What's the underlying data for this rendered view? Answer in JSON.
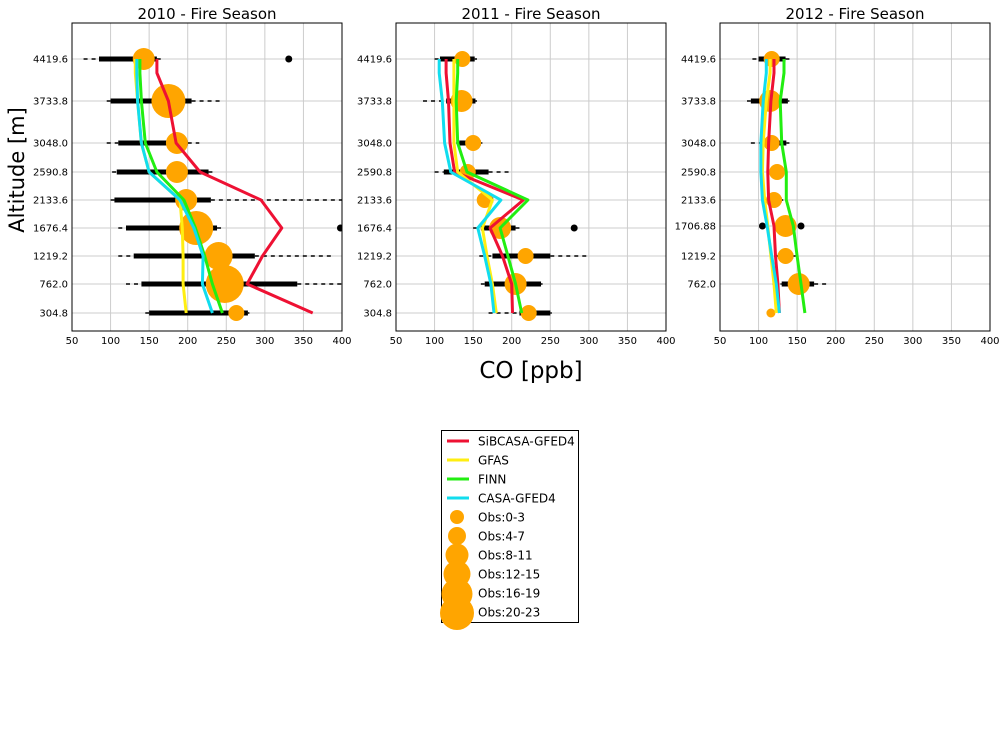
{
  "figure": {
    "ylabel": "Altitude [m]",
    "xlabel": "CO [ppb]",
    "colors": {
      "SiBCASA-GFED4": "#ee1133",
      "GFAS": "#ffee11",
      "FINN": "#22ee11",
      "CASA-GFED4": "#11ddee",
      "obs": "#ffa500",
      "boxplot": "#000000",
      "grid": "#cccccc"
    }
  },
  "legend": {
    "placement": "below-center",
    "entries": [
      {
        "label": "SiBCASA-GFED4",
        "type": "line",
        "color": "#ee1133"
      },
      {
        "label": "GFAS",
        "type": "line",
        "color": "#ffee11"
      },
      {
        "label": "FINN",
        "type": "line",
        "color": "#22ee11"
      },
      {
        "label": "CASA-GFED4",
        "type": "line",
        "color": "#11ddee"
      },
      {
        "label": "Obs:0-3",
        "type": "marker",
        "color": "#ffa500",
        "size": 1
      },
      {
        "label": "Obs:4-7",
        "type": "marker",
        "color": "#ffa500",
        "size": 2
      },
      {
        "label": "Obs:8-11",
        "type": "marker",
        "color": "#ffa500",
        "size": 3
      },
      {
        "label": "Obs:12-15",
        "type": "marker",
        "color": "#ffa500",
        "size": 4
      },
      {
        "label": "Obs:16-19",
        "type": "marker",
        "color": "#ffa500",
        "size": 5
      },
      {
        "label": "Obs:20-23",
        "type": "marker",
        "color": "#ffa500",
        "size": 6
      }
    ]
  },
  "chart_data": [
    {
      "type": "line",
      "title": "2010 - Fire Season",
      "xlim": [
        50,
        400
      ],
      "xticks": [
        50,
        100,
        150,
        200,
        250,
        300,
        350,
        400
      ],
      "yticks": [
        "4419.6",
        "3733.8",
        "3048.0",
        "2590.8",
        "2133.6",
        "1676.4",
        "1219.2",
        "762.0",
        "304.8"
      ],
      "grid": true,
      "series": [
        {
          "name": "SiBCASA-GFED4",
          "x": [
            362,
            277,
            297,
            322,
            295,
            216,
            185,
            175,
            160,
            160
          ],
          "y": [
            304.8,
            762.0,
            1219.2,
            1676.4,
            2133.6,
            2590.8,
            3048.0,
            3733.8,
            4200,
            4419.6
          ]
        },
        {
          "name": "GFAS",
          "x": [
            198,
            194,
            194,
            193,
            190,
            150,
            140,
            135,
            132,
            132
          ],
          "y": [
            304.8,
            762.0,
            1219.2,
            1676.4,
            2133.6,
            2590.8,
            3048.0,
            3733.8,
            4200,
            4419.6
          ]
        },
        {
          "name": "FINN",
          "x": [
            245,
            232,
            222,
            210,
            195,
            160,
            145,
            140,
            138,
            138
          ],
          "y": [
            304.8,
            762.0,
            1219.2,
            1676.4,
            2133.6,
            2590.8,
            3048.0,
            3733.8,
            4200,
            4419.6
          ]
        },
        {
          "name": "CASA-GFED4",
          "x": [
            232,
            219,
            220,
            208,
            190,
            150,
            140,
            135,
            134,
            134
          ],
          "y": [
            304.8,
            762.0,
            1219.2,
            1676.4,
            2133.6,
            2590.8,
            3048.0,
            3733.8,
            4200,
            4419.6
          ]
        }
      ],
      "obs": [
        {
          "alt": 4419.6,
          "co": 143,
          "size": 2
        },
        {
          "alt": 3733.8,
          "co": 175,
          "size": 4
        },
        {
          "alt": 3048.0,
          "co": 186,
          "size": 2
        },
        {
          "alt": 2590.8,
          "co": 186,
          "size": 2
        },
        {
          "alt": 2133.6,
          "co": 198,
          "size": 2
        },
        {
          "alt": 1676.4,
          "co": 211,
          "size": 4
        },
        {
          "alt": 1219.2,
          "co": 240,
          "size": 3
        },
        {
          "alt": 762.0,
          "co": 248,
          "size": 5
        },
        {
          "alt": 304.8,
          "co": 263,
          "size": 1
        }
      ],
      "boxplots": [
        {
          "alt": 4419.6,
          "min": 65,
          "q1": 85,
          "q3": 160,
          "max": 165,
          "outliers": [
            331
          ]
        },
        {
          "alt": 3733.8,
          "min": 95,
          "q1": 100,
          "q3": 205,
          "max": 245,
          "outliers": []
        },
        {
          "alt": 3048.0,
          "min": 95,
          "q1": 110,
          "q3": 200,
          "max": 215,
          "outliers": []
        },
        {
          "alt": 2590.8,
          "min": 102,
          "q1": 108,
          "q3": 227,
          "max": 232,
          "outliers": []
        },
        {
          "alt": 2133.6,
          "min": 100,
          "q1": 105,
          "q3": 230,
          "max": 400,
          "outliers": []
        },
        {
          "alt": 1676.4,
          "min": 110,
          "q1": 120,
          "q3": 238,
          "max": 245,
          "outliers": [
            398
          ]
        },
        {
          "alt": 1219.2,
          "min": 110,
          "q1": 130,
          "q3": 287,
          "max": 390,
          "outliers": []
        },
        {
          "alt": 762.0,
          "min": 120,
          "q1": 140,
          "q3": 342,
          "max": 400,
          "outliers": []
        },
        {
          "alt": 304.8,
          "min": 145,
          "q1": 150,
          "q3": 278,
          "max": 280,
          "outliers": []
        }
      ]
    },
    {
      "type": "line",
      "title": "2011 - Fire Season",
      "xlim": [
        50,
        400
      ],
      "xticks": [
        50,
        100,
        150,
        200,
        250,
        300,
        350,
        400
      ],
      "yticks": [
        "4419.6",
        "3733.8",
        "3048.0",
        "2590.8",
        "2133.6",
        "1676.4",
        "1219.2",
        "762.0",
        "304.8"
      ],
      "grid": true,
      "series": [
        {
          "name": "SiBCASA-GFED4",
          "x": [
            201,
            200,
            188,
            172,
            215,
            126,
            120,
            118,
            115,
            115
          ],
          "y": [
            304.8,
            762.0,
            1219.2,
            1676.4,
            2133.6,
            2590.8,
            3048.0,
            3733.8,
            4200,
            4419.6
          ]
        },
        {
          "name": "GFAS",
          "x": [
            180,
            175,
            168,
            162,
            175,
            130,
            125,
            125,
            125,
            125
          ],
          "y": [
            304.8,
            762.0,
            1219.2,
            1676.4,
            2133.6,
            2590.8,
            3048.0,
            3733.8,
            4200,
            4419.6
          ]
        },
        {
          "name": "FINN",
          "x": [
            213,
            205,
            195,
            185,
            221,
            142,
            130,
            128,
            130,
            130
          ],
          "y": [
            304.8,
            762.0,
            1219.2,
            1676.4,
            2133.6,
            2590.8,
            3048.0,
            3733.8,
            4200,
            4419.6
          ]
        },
        {
          "name": "CASA-GFED4",
          "x": [
            177,
            173,
            165,
            156,
            186,
            121,
            113,
            110,
            106,
            106
          ],
          "y": [
            304.8,
            762.0,
            1219.2,
            1676.4,
            2133.6,
            2590.8,
            3048.0,
            3733.8,
            4200,
            4419.6
          ]
        }
      ],
      "obs": [
        {
          "alt": 4419.6,
          "co": 136,
          "size": 1
        },
        {
          "alt": 3733.8,
          "co": 135,
          "size": 2
        },
        {
          "alt": 3048.0,
          "co": 150,
          "size": 1
        },
        {
          "alt": 2590.8,
          "co": 143,
          "size": 1
        },
        {
          "alt": 2133.6,
          "co": 165,
          "size": 1
        },
        {
          "alt": 1676.4,
          "co": 185,
          "size": 2
        },
        {
          "alt": 1219.2,
          "co": 218,
          "size": 1
        },
        {
          "alt": 762.0,
          "co": 205,
          "size": 2
        },
        {
          "alt": 304.8,
          "co": 222,
          "size": 1
        }
      ],
      "boxplots": [
        {
          "alt": 4419.6,
          "min": 100,
          "q1": 107,
          "q3": 152,
          "max": 155,
          "outliers": []
        },
        {
          "alt": 3733.8,
          "min": 85,
          "q1": 115,
          "q3": 153,
          "max": 155,
          "outliers": []
        },
        {
          "alt": 3048.0,
          "min": 128,
          "q1": 132,
          "q3": 160,
          "max": 162,
          "outliers": []
        },
        {
          "alt": 2590.8,
          "min": 100,
          "q1": 112,
          "q3": 170,
          "max": 198,
          "outliers": []
        },
        {
          "alt": 2133.6,
          "min": 172,
          "q1": 172,
          "q3": 176,
          "max": 176,
          "outliers": []
        },
        {
          "alt": 1676.4,
          "min": 150,
          "q1": 160,
          "q3": 205,
          "max": 210,
          "outliers": [
            281
          ]
        },
        {
          "alt": 1219.2,
          "min": 158,
          "q1": 175,
          "q3": 250,
          "max": 298,
          "outliers": []
        },
        {
          "alt": 762.0,
          "min": 160,
          "q1": 165,
          "q3": 238,
          "max": 240,
          "outliers": []
        },
        {
          "alt": 304.8,
          "min": 170,
          "q1": 210,
          "q3": 250,
          "max": 252,
          "outliers": []
        }
      ]
    },
    {
      "type": "line",
      "title": "2012 - Fire Season",
      "xlim": [
        50,
        400
      ],
      "xticks": [
        50,
        100,
        150,
        200,
        250,
        300,
        350,
        400
      ],
      "yticks": [
        "4419.6",
        "3733.8",
        "3048.0",
        "2590.8",
        "2133.6",
        "1706.88",
        "1219.2",
        "762.0"
      ],
      "grid": true,
      "series": [
        {
          "name": "SiBCASA-GFED4",
          "x": [
            127,
            125,
            122,
            120,
            113,
            112,
            113,
            116,
            120,
            120
          ],
          "y": [
            304.8,
            762.0,
            1219.2,
            1706.88,
            2133.6,
            2590.8,
            3048.0,
            3733.8,
            4200,
            4419.6
          ]
        },
        {
          "name": "GFAS",
          "x": [
            123,
            120,
            116,
            112,
            108,
            105,
            106,
            110,
            115,
            115
          ],
          "y": [
            304.8,
            762.0,
            1219.2,
            1706.88,
            2133.6,
            2590.8,
            3048.0,
            3733.8,
            4200,
            4419.6
          ]
        },
        {
          "name": "FINN",
          "x": [
            160,
            155,
            150,
            145,
            136,
            136,
            130,
            128,
            133,
            133
          ],
          "y": [
            304.8,
            762.0,
            1219.2,
            1706.88,
            2133.6,
            2590.8,
            3048.0,
            3733.8,
            4200,
            4419.6
          ]
        },
        {
          "name": "CASA-GFED4",
          "x": [
            127,
            123,
            117,
            111,
            105,
            103,
            103,
            106,
            110,
            110
          ],
          "y": [
            304.8,
            762.0,
            1219.2,
            1706.88,
            2133.6,
            2590.8,
            3048.0,
            3733.8,
            4200,
            4419.6
          ]
        }
      ],
      "obs": [
        {
          "alt": 4419.6,
          "co": 117,
          "size": 1
        },
        {
          "alt": 3733.8,
          "co": 115,
          "size": 2
        },
        {
          "alt": 3048.0,
          "co": 117,
          "size": 1
        },
        {
          "alt": 2590.8,
          "co": 124,
          "size": 1
        },
        {
          "alt": 2133.6,
          "co": 120,
          "size": 1
        },
        {
          "alt": 1706.88,
          "co": 135,
          "size": 2
        },
        {
          "alt": 1219.2,
          "co": 135,
          "size": 1
        },
        {
          "alt": 762.0,
          "co": 152,
          "size": 2
        },
        {
          "alt": 304.8,
          "co": 116,
          "size": 0
        }
      ],
      "boxplots": [
        {
          "alt": 4419.6,
          "min": 92,
          "q1": 100,
          "q3": 135,
          "max": 140,
          "outliers": []
        },
        {
          "alt": 3733.8,
          "min": 85,
          "q1": 90,
          "q3": 138,
          "max": 140,
          "outliers": []
        },
        {
          "alt": 3048.0,
          "min": 90,
          "q1": 102,
          "q3": 136,
          "max": 140,
          "outliers": []
        },
        {
          "alt": 2590.8,
          "min": 115,
          "q1": 118,
          "q3": 132,
          "max": 134,
          "outliers": []
        },
        {
          "alt": 2133.6,
          "min": 105,
          "q1": 112,
          "q3": 130,
          "max": 132,
          "outliers": []
        },
        {
          "alt": 1706.88,
          "min": 125,
          "q1": 130,
          "q3": 145,
          "max": 148,
          "outliers": [
            105,
            155
          ]
        },
        {
          "alt": 1219.2,
          "min": 120,
          "q1": 125,
          "q3": 145,
          "max": 148,
          "outliers": []
        },
        {
          "alt": 762.0,
          "min": 118,
          "q1": 130,
          "q3": 172,
          "max": 190,
          "outliers": []
        }
      ]
    }
  ]
}
